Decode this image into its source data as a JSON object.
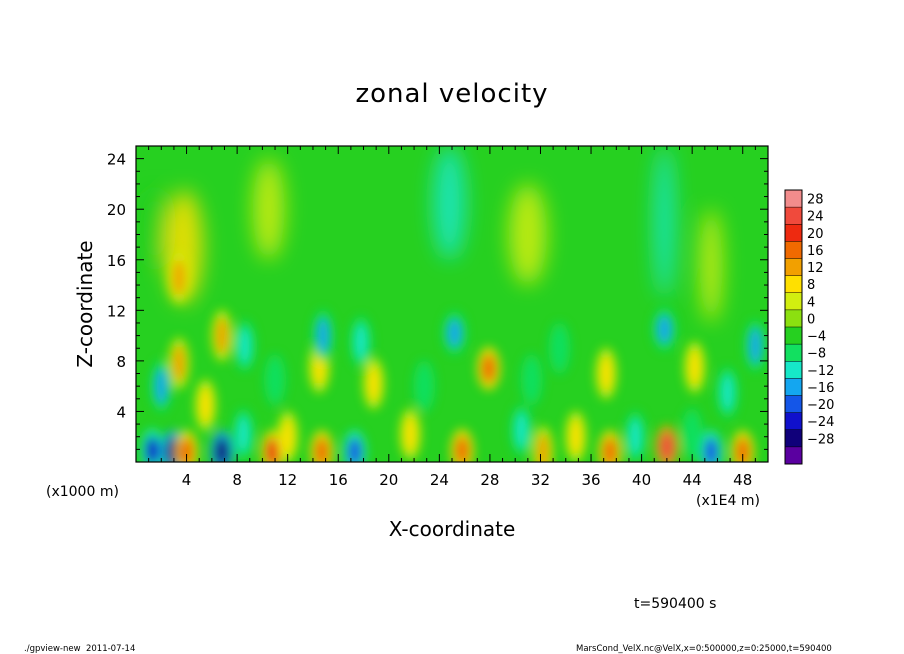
{
  "chart_data": {
    "type": "heatmap",
    "title": "zonal velocity",
    "xlabel": "X-coordinate",
    "ylabel": "Z-coordinate",
    "x_ticks": [
      4,
      8,
      12,
      16,
      20,
      24,
      28,
      32,
      36,
      40,
      44,
      48
    ],
    "y_ticks": [
      4,
      8,
      12,
      16,
      20,
      24
    ],
    "xlim": [
      0,
      50
    ],
    "ylim": [
      0,
      25
    ],
    "x_unit_note": "(x1E4 m)",
    "y_unit_note": "(x1000 m)",
    "colorbar": {
      "levels": [
        28,
        24,
        20,
        16,
        12,
        8,
        4,
        0,
        -4,
        -8,
        -12,
        -16,
        -20,
        -24,
        -28
      ],
      "colors": [
        "#f28c8c",
        "#f04a3c",
        "#ee2a10",
        "#f06a00",
        "#f2a000",
        "#ffe000",
        "#d2ee10",
        "#8ce010",
        "#26d020",
        "#12e060",
        "#16e8c8",
        "#14a6f0",
        "#1456e8",
        "#1010cc",
        "#10007a",
        "#5a00a0"
      ]
    },
    "hotspots": [
      {
        "x": 1.3,
        "z": 0.9,
        "v": -22
      },
      {
        "x": 2.9,
        "z": 0.8,
        "v": -26
      },
      {
        "x": 4.0,
        "z": 0.8,
        "v": 18
      },
      {
        "x": 6.8,
        "z": 0.8,
        "v": -28
      },
      {
        "x": 10.8,
        "z": 0.8,
        "v": 22
      },
      {
        "x": 14.7,
        "z": 0.8,
        "v": 18
      },
      {
        "x": 17.3,
        "z": 0.8,
        "v": -18
      },
      {
        "x": 25.8,
        "z": 0.9,
        "v": 16
      },
      {
        "x": 32.2,
        "z": 0.8,
        "v": 14
      },
      {
        "x": 37.5,
        "z": 0.8,
        "v": 18
      },
      {
        "x": 42.0,
        "z": 1.2,
        "v": 24
      },
      {
        "x": 45.5,
        "z": 0.8,
        "v": -20
      },
      {
        "x": 48.0,
        "z": 0.8,
        "v": 16
      },
      {
        "x": 3.4,
        "z": 7.8,
        "v": 14
      },
      {
        "x": 3.4,
        "z": 14.6,
        "v": 14
      },
      {
        "x": 6.8,
        "z": 10.0,
        "v": 12
      },
      {
        "x": 14.5,
        "z": 7.5,
        "v": 10
      },
      {
        "x": 27.9,
        "z": 7.4,
        "v": 18
      },
      {
        "x": 2.0,
        "z": 6.0,
        "v": -14
      },
      {
        "x": 8.6,
        "z": 9.2,
        "v": -12
      },
      {
        "x": 14.8,
        "z": 10.0,
        "v": -14
      },
      {
        "x": 17.8,
        "z": 9.5,
        "v": -12
      },
      {
        "x": 25.2,
        "z": 10.2,
        "v": -16
      },
      {
        "x": 41.8,
        "z": 10.5,
        "v": -16
      },
      {
        "x": 49.0,
        "z": 9.2,
        "v": -14
      },
      {
        "x": 8.5,
        "z": 2.2,
        "v": -10
      },
      {
        "x": 12.0,
        "z": 2.0,
        "v": 8
      },
      {
        "x": 21.7,
        "z": 2.2,
        "v": 8
      },
      {
        "x": 30.5,
        "z": 2.5,
        "v": -10
      },
      {
        "x": 34.8,
        "z": 2.0,
        "v": 8
      },
      {
        "x": 39.5,
        "z": 2.0,
        "v": -10
      },
      {
        "x": 44.0,
        "z": 2.2,
        "v": -8
      },
      {
        "x": 46.8,
        "z": 5.5,
        "v": -10
      },
      {
        "x": 18.8,
        "z": 6.2,
        "v": 8
      },
      {
        "x": 22.8,
        "z": 6.0,
        "v": -8
      },
      {
        "x": 31.3,
        "z": 6.5,
        "v": -8
      },
      {
        "x": 37.2,
        "z": 7.0,
        "v": 8
      },
      {
        "x": 33.5,
        "z": 9.0,
        "v": -8
      },
      {
        "x": 11.0,
        "z": 6.5,
        "v": -8
      },
      {
        "x": 44.2,
        "z": 7.5,
        "v": 10
      },
      {
        "x": 5.5,
        "z": 4.5,
        "v": 10
      }
    ],
    "bands": [
      {
        "x": 3.8,
        "z": 17.0,
        "v": 8,
        "w": 3.0,
        "h": 9.0
      },
      {
        "x": 24.8,
        "z": 20.5,
        "v": -9,
        "w": 2.6,
        "h": 9.0
      },
      {
        "x": 41.8,
        "z": 19.0,
        "v": -10,
        "w": 1.6,
        "h": 12.0
      },
      {
        "x": 45.5,
        "z": 15.5,
        "v": 6,
        "w": 1.8,
        "h": 9.0
      },
      {
        "x": 10.5,
        "z": 20.0,
        "v": 5,
        "w": 2.5,
        "h": 8.0
      },
      {
        "x": 31.0,
        "z": 18.0,
        "v": 4,
        "w": 3.0,
        "h": 8.0
      },
      {
        "x": 1.5,
        "z": 18.5,
        "v": -3,
        "w": 1.8,
        "h": 6.0
      }
    ]
  },
  "time_label": "t=590400 s",
  "footer_left": "./gpview-new  2011-07-14",
  "footer_right": "MarsCond_VelX.nc@VelX,x=0:500000,z=0:25000,t=590400"
}
